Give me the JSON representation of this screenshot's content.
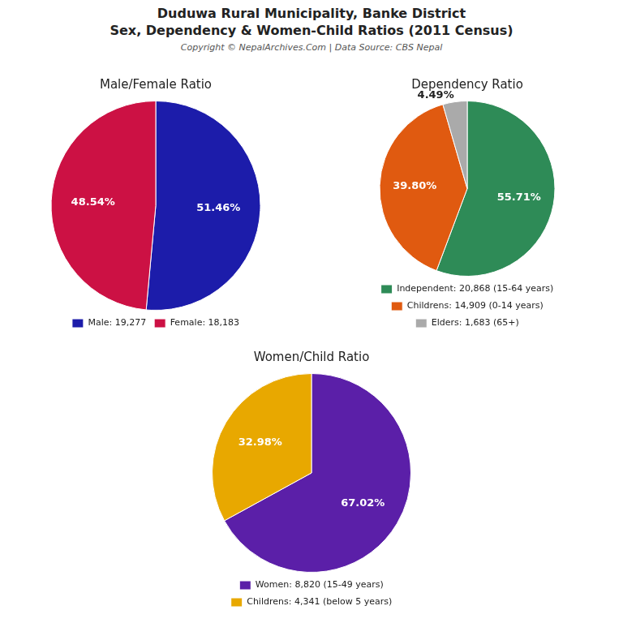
{
  "title": [
    "Duduwa Rural Municipality, Banke District",
    "Sex, Dependency & Women-Child Ratios (2011 Census)"
  ],
  "subtitle": "Copyright © NepalArchives.Com | Data Source: CBS Nepal",
  "chart_data": [
    {
      "type": "pie",
      "title": "Male/Female Ratio",
      "categories": [
        "Male: 19,277",
        "Female: 18,183"
      ],
      "values": [
        51.46,
        48.54
      ],
      "value_labels": [
        "51.46%",
        "48.54%"
      ],
      "colors": [
        "#1c1caa",
        "#cc1144"
      ],
      "data_labels": true,
      "legend": "bottom"
    },
    {
      "type": "pie",
      "title": "Dependency Ratio",
      "categories": [
        "Independent: 20,868 (15-64 years)",
        "Childrens: 14,909 (0-14 years)",
        "Elders: 1,683 (65+)"
      ],
      "values": [
        55.71,
        39.8,
        4.49
      ],
      "value_labels": [
        "55.71%",
        "39.80%",
        "4.49%"
      ],
      "colors": [
        "#2e8b57",
        "#e05a10",
        "#aaaaaa"
      ],
      "data_labels": true,
      "legend": "bottom"
    },
    {
      "type": "pie",
      "title": "Women/Child Ratio",
      "categories": [
        "Women: 8,820 (15-49 years)",
        "Childrens: 4,341 (below 5 years)"
      ],
      "values": [
        67.02,
        32.98
      ],
      "value_labels": [
        "67.02%",
        "32.98%"
      ],
      "colors": [
        "#5b1fa8",
        "#e8a800"
      ],
      "data_labels": true,
      "legend": "bottom"
    }
  ]
}
